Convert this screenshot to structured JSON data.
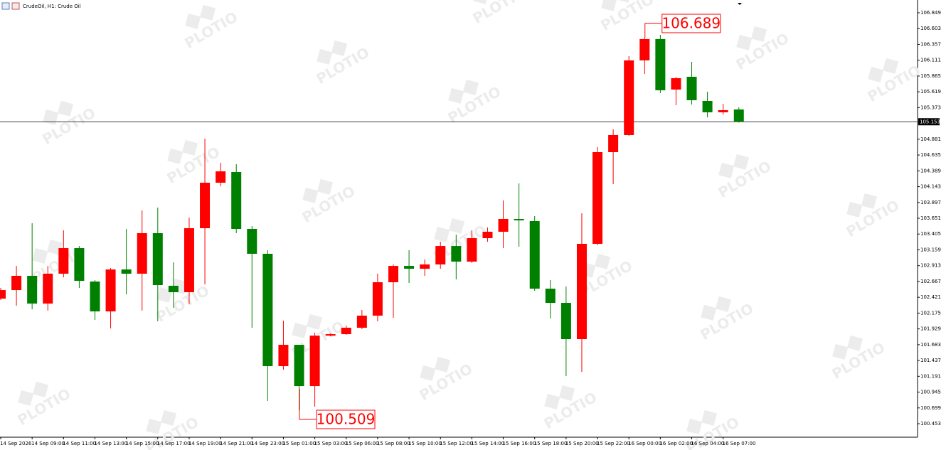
{
  "chart_data": {
    "type": "candlestick",
    "title": "CrudeOil, H1:  Crude Oil",
    "watermark": "PLOTIO",
    "up_color": "#ff0000",
    "down_color": "#008000",
    "categories": [
      "14 Sep 2026",
      null,
      "14 Sep 09:00",
      null,
      "14 Sep 11:00",
      null,
      "14 Sep 13:00",
      null,
      "14 Sep 15:00",
      null,
      "14 Sep 17:00",
      null,
      "14 Sep 19:00",
      null,
      "14 Sep 21:00",
      null,
      "14 Sep 23:00",
      null,
      "15 Sep 01:00",
      null,
      "15 Sep 03:00",
      null,
      "15 Sep 06:00",
      null,
      "15 Sep 08:00",
      null,
      "15 Sep 10:00",
      null,
      "15 Sep 12:00",
      null,
      "15 Sep 14:00",
      null,
      "15 Sep 16:00",
      null,
      "15 Sep 18:00",
      null,
      "15 Sep 20:00",
      null,
      "15 Sep 22:00",
      null,
      "16 Sep 00:00",
      null,
      "16 Sep 02:00",
      null,
      "16 Sep 04:00",
      null,
      "16 Sep 07:00",
      null
    ],
    "open": [
      102.4,
      102.533,
      102.755,
      102.323,
      102.788,
      103.186,
      102.666,
      102.201,
      102.854,
      102.788,
      103.419,
      102.6,
      102.5,
      103.496,
      104.204,
      104.37,
      103.485,
      103.098,
      101.349,
      101.681,
      101.039,
      101.824,
      101.847,
      101.947,
      102.135,
      102.655,
      102.909,
      102.865,
      102.932,
      103.219,
      102.976,
      103.341,
      103.441,
      103.64,
      103.607,
      102.555,
      102.334,
      101.77,
      103.253,
      104.68,
      104.946,
      106.108,
      106.44,
      105.654,
      105.853,
      105.477,
      105.3,
      105.344
    ],
    "high": [
      102.566,
      102.909,
      103.573,
      102.909,
      103.463,
      103.219,
      102.688,
      102.876,
      103.485,
      103.773,
      103.817,
      102.965,
      103.662,
      104.89,
      104.514,
      104.492,
      103.529,
      103.153,
      102.057,
      101.681,
      101.869,
      101.858,
      101.98,
      102.223,
      102.788,
      102.932,
      103.153,
      103.009,
      103.286,
      103.396,
      103.463,
      103.507,
      103.928,
      104.193,
      103.684,
      102.688,
      102.589,
      103.728,
      104.757,
      105.034,
      106.174,
      106.462,
      106.506,
      105.853,
      106.085,
      105.621,
      105.433,
      105.377
    ],
    "low": [
      102.378,
      102.29,
      102.234,
      102.212,
      102.732,
      102.566,
      102.068,
      101.936,
      102.467,
      102.212,
      102.046,
      102.257,
      102.312,
      102.622,
      104.149,
      103.419,
      101.947,
      100.807,
      101.294,
      100.663,
      100.718,
      101.813,
      101.836,
      101.925,
      102.046,
      102.102,
      102.644,
      102.755,
      102.865,
      102.699,
      102.954,
      103.286,
      103.186,
      103.208,
      102.522,
      102.091,
      101.194,
      101.261,
      103.23,
      104.182,
      104.935,
      105.897,
      105.599,
      105.41,
      105.421,
      105.222,
      105.267,
      105.14
    ],
    "close": [
      102.533,
      102.755,
      102.323,
      102.788,
      103.186,
      102.677,
      102.201,
      102.854,
      102.788,
      103.419,
      102.611,
      102.5,
      103.496,
      104.204,
      104.381,
      103.485,
      103.098,
      101.349,
      101.681,
      101.039,
      101.824,
      101.847,
      101.947,
      102.135,
      102.655,
      102.909,
      102.865,
      102.932,
      103.219,
      102.976,
      103.341,
      103.441,
      103.64,
      103.618,
      102.555,
      102.334,
      101.77,
      103.253,
      104.68,
      104.946,
      106.108,
      106.44,
      105.643,
      105.831,
      105.488,
      105.3,
      105.333,
      105.153
    ],
    "ylim": [
      100.243,
      107.048
    ],
    "yticks": [
      106.849,
      106.603,
      106.357,
      106.111,
      105.865,
      105.619,
      105.373,
      104.881,
      104.635,
      104.389,
      104.143,
      103.897,
      103.651,
      103.405,
      103.159,
      102.913,
      102.667,
      102.421,
      102.175,
      101.929,
      101.683,
      101.437,
      101.191,
      100.945,
      100.699,
      100.453
    ],
    "price_line": 105.153,
    "annotations": [
      "106.689",
      "100.509"
    ]
  }
}
